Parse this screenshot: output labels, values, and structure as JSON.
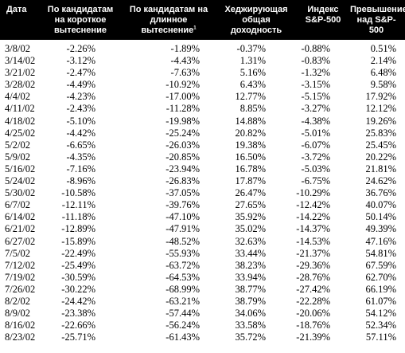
{
  "headers": {
    "date": "Дата",
    "short": "По кандидатам на короткое вытеснение",
    "long": "По кандидатам на длинное вытеснение",
    "long_footnote": "1",
    "hedge": "Хеджирующая общая доходность",
    "sp": "Индекс S&P-500",
    "excess": "Превышение над S&P-500"
  },
  "rows": [
    {
      "date": "3/8/02",
      "short": "-2.26%",
      "long": "-1.89%",
      "hedge": "-0.37%",
      "sp": "-0.88%",
      "excess": "0.51%"
    },
    {
      "date": "3/14/02",
      "short": "-3.12%",
      "long": "-4.43%",
      "hedge": "1.31%",
      "sp": "-0.83%",
      "excess": "2.14%"
    },
    {
      "date": "3/21/02",
      "short": "-2.47%",
      "long": "-7.63%",
      "hedge": "5.16%",
      "sp": "-1.32%",
      "excess": "6.48%"
    },
    {
      "date": "3/28/02",
      "short": "-4.49%",
      "long": "-10.92%",
      "hedge": "6.43%",
      "sp": "-3.15%",
      "excess": "9.58%"
    },
    {
      "date": "4/4/02",
      "short": "-4.23%",
      "long": "-17.00%",
      "hedge": "12.77%",
      "sp": "-5.15%",
      "excess": "17.92%"
    },
    {
      "date": "4/11/02",
      "short": "-2.43%",
      "long": "-11.28%",
      "hedge": "8.85%",
      "sp": "-3.27%",
      "excess": "12.12%"
    },
    {
      "date": "4/18/02",
      "short": "-5.10%",
      "long": "-19.98%",
      "hedge": "14.88%",
      "sp": "-4.38%",
      "excess": "19.26%"
    },
    {
      "date": "4/25/02",
      "short": "-4.42%",
      "long": "-25.24%",
      "hedge": "20.82%",
      "sp": "-5.01%",
      "excess": "25.83%"
    },
    {
      "date": "5/2/02",
      "short": "-6.65%",
      "long": "-26.03%",
      "hedge": "19.38%",
      "sp": "-6.07%",
      "excess": "25.45%"
    },
    {
      "date": "5/9/02",
      "short": "-4.35%",
      "long": "-20.85%",
      "hedge": "16.50%",
      "sp": "-3.72%",
      "excess": "20.22%"
    },
    {
      "date": "5/16/02",
      "short": "-7.16%",
      "long": "-23.94%",
      "hedge": "16.78%",
      "sp": "-5.03%",
      "excess": "21.81%"
    },
    {
      "date": "5/24/02",
      "short": "-8.96%",
      "long": "-26.83%",
      "hedge": "17.87%",
      "sp": "-6.75%",
      "excess": "24.62%"
    },
    {
      "date": "5/30/02",
      "short": "-10.58%",
      "long": "-37.05%",
      "hedge": "26.47%",
      "sp": "-10.29%",
      "excess": "36.76%"
    },
    {
      "date": "6/7/02",
      "short": "-12.11%",
      "long": "-39.76%",
      "hedge": "27.65%",
      "sp": "-12.42%",
      "excess": "40.07%"
    },
    {
      "date": "6/14/02",
      "short": "-11.18%",
      "long": "-47.10%",
      "hedge": "35.92%",
      "sp": "-14.22%",
      "excess": "50.14%"
    },
    {
      "date": "6/21/02",
      "short": "-12.89%",
      "long": "-47.91%",
      "hedge": "35.02%",
      "sp": "-14.37%",
      "excess": "49.39%"
    },
    {
      "date": "6/27/02",
      "short": "-15.89%",
      "long": "-48.52%",
      "hedge": "32.63%",
      "sp": "-14.53%",
      "excess": "47.16%"
    },
    {
      "date": "7/5/02",
      "short": "-22.49%",
      "long": "-55.93%",
      "hedge": "33.44%",
      "sp": "-21.37%",
      "excess": "54.81%"
    },
    {
      "date": "7/12/02",
      "short": "-25.49%",
      "long": "-63.72%",
      "hedge": "38.23%",
      "sp": "-29.36%",
      "excess": "67.59%"
    },
    {
      "date": "7/19/02",
      "short": "-30.59%",
      "long": "-64.53%",
      "hedge": "33.94%",
      "sp": "-28.76%",
      "excess": "62.70%"
    },
    {
      "date": "7/26/02",
      "short": "-30.22%",
      "long": "-68.99%",
      "hedge": "38.77%",
      "sp": "-27.42%",
      "excess": "66.19%"
    },
    {
      "date": "8/2/02",
      "short": "-24.42%",
      "long": "-63.21%",
      "hedge": "38.79%",
      "sp": "-22.28%",
      "excess": "61.07%"
    },
    {
      "date": "8/9/02",
      "short": "-23.38%",
      "long": "-57.44%",
      "hedge": "34.06%",
      "sp": "-20.06%",
      "excess": "54.12%"
    },
    {
      "date": "8/16/02",
      "short": "-22.66%",
      "long": "-56.24%",
      "hedge": "33.58%",
      "sp": "-18.76%",
      "excess": "52.34%"
    },
    {
      "date": "8/23/02",
      "short": "-25.71%",
      "long": "-61.43%",
      "hedge": "35.72%",
      "sp": "-21.39%",
      "excess": "57.11%"
    }
  ]
}
